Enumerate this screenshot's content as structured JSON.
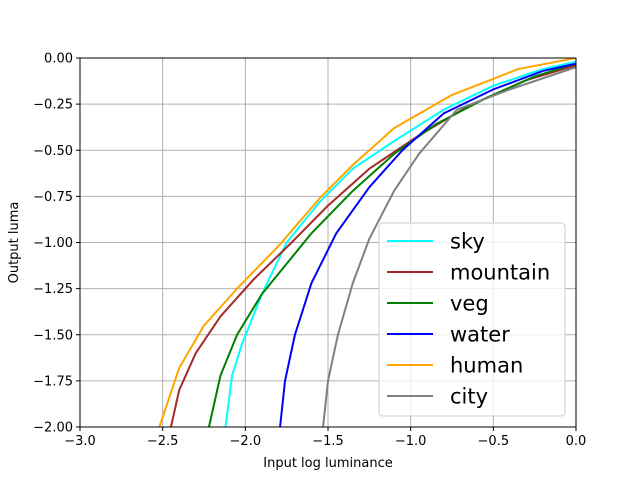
{
  "chart_data": {
    "type": "line",
    "title": "",
    "xlabel": "Input log luminance",
    "ylabel": "Output luma",
    "xlim": [
      -3.0,
      0.0
    ],
    "ylim": [
      -2.0,
      0.0
    ],
    "grid": true,
    "legend_position": "lower-right",
    "x_ticks": [
      "−3.0",
      "−2.5",
      "−2.0",
      "−1.5",
      "−1.0",
      "−0.5",
      "0.0"
    ],
    "y_ticks": [
      "0.00",
      "−0.25",
      "−0.50",
      "−0.75",
      "−1.00",
      "−1.25",
      "−1.50",
      "−1.75",
      "−2.00"
    ],
    "series": [
      {
        "name": "sky",
        "color": "#00ffff",
        "points": [
          [
            -2.12,
            -2.0
          ],
          [
            -2.08,
            -1.72
          ],
          [
            -2.02,
            -1.55
          ],
          [
            -1.9,
            -1.28
          ],
          [
            -1.75,
            -1.0
          ],
          [
            -1.55,
            -0.78
          ],
          [
            -1.35,
            -0.6
          ],
          [
            -1.1,
            -0.45
          ],
          [
            -0.8,
            -0.28
          ],
          [
            -0.5,
            -0.15
          ],
          [
            -0.2,
            -0.06
          ],
          [
            0.0,
            -0.02
          ]
        ]
      },
      {
        "name": "mountain",
        "color": "#a52a2a",
        "points": [
          [
            -2.45,
            -2.0
          ],
          [
            -2.4,
            -1.8
          ],
          [
            -2.3,
            -1.6
          ],
          [
            -2.15,
            -1.4
          ],
          [
            -1.95,
            -1.2
          ],
          [
            -1.72,
            -1.0
          ],
          [
            -1.5,
            -0.8
          ],
          [
            -1.25,
            -0.6
          ],
          [
            -0.95,
            -0.42
          ],
          [
            -0.65,
            -0.26
          ],
          [
            -0.3,
            -0.12
          ],
          [
            0.0,
            -0.04
          ]
        ]
      },
      {
        "name": "veg",
        "color": "#008000",
        "points": [
          [
            -2.22,
            -2.0
          ],
          [
            -2.15,
            -1.72
          ],
          [
            -2.05,
            -1.5
          ],
          [
            -1.9,
            -1.28
          ],
          [
            -1.6,
            -0.95
          ],
          [
            -1.35,
            -0.72
          ],
          [
            -1.1,
            -0.52
          ],
          [
            -0.85,
            -0.36
          ],
          [
            -0.55,
            -0.22
          ],
          [
            -0.25,
            -0.1
          ],
          [
            0.0,
            -0.03
          ]
        ]
      },
      {
        "name": "water",
        "color": "#0000ff",
        "points": [
          [
            -1.79,
            -2.0
          ],
          [
            -1.76,
            -1.75
          ],
          [
            -1.7,
            -1.5
          ],
          [
            -1.6,
            -1.22
          ],
          [
            -1.45,
            -0.95
          ],
          [
            -1.25,
            -0.7
          ],
          [
            -1.05,
            -0.5
          ],
          [
            -0.8,
            -0.3
          ],
          [
            -0.5,
            -0.17
          ],
          [
            -0.2,
            -0.07
          ],
          [
            0.0,
            -0.03
          ]
        ]
      },
      {
        "name": "human",
        "color": "#ffa500",
        "points": [
          [
            -2.52,
            -2.0
          ],
          [
            -2.4,
            -1.68
          ],
          [
            -2.25,
            -1.45
          ],
          [
            -2.05,
            -1.25
          ],
          [
            -1.8,
            -1.02
          ],
          [
            -1.55,
            -0.76
          ],
          [
            -1.35,
            -0.58
          ],
          [
            -1.1,
            -0.38
          ],
          [
            -0.75,
            -0.2
          ],
          [
            -0.35,
            -0.06
          ],
          [
            0.0,
            0.0
          ]
        ]
      },
      {
        "name": "city",
        "color": "#808080",
        "points": [
          [
            -1.53,
            -2.0
          ],
          [
            -1.5,
            -1.75
          ],
          [
            -1.44,
            -1.5
          ],
          [
            -1.35,
            -1.22
          ],
          [
            -1.25,
            -0.98
          ],
          [
            -1.1,
            -0.72
          ],
          [
            -0.95,
            -0.52
          ],
          [
            -0.72,
            -0.28
          ],
          [
            -0.4,
            -0.17
          ],
          [
            0.0,
            -0.05
          ]
        ]
      }
    ]
  }
}
